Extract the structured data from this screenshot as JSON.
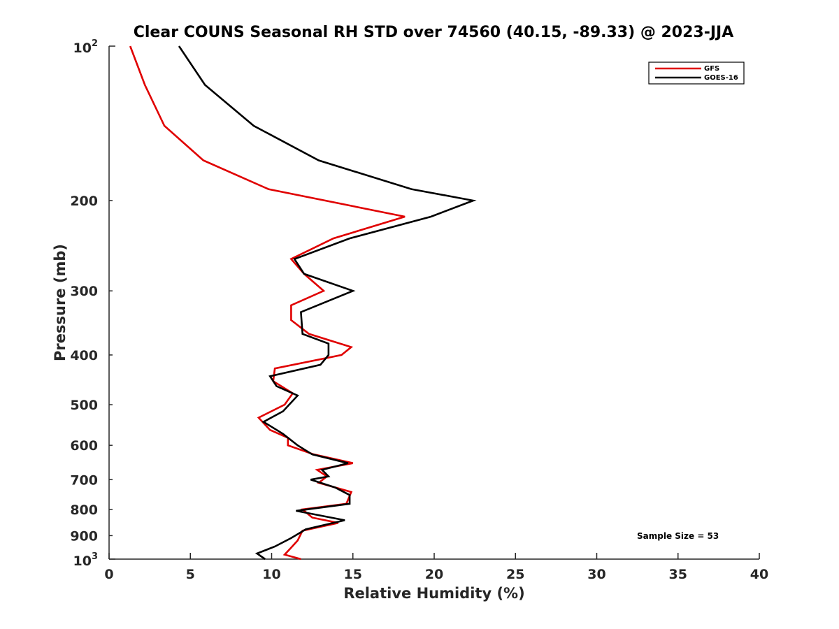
{
  "chart_data": {
    "type": "line",
    "title": "Clear COUNS Seasonal RH STD over 74560 (40.15, -89.33) @ 2023-JJA",
    "xlabel": "Relative Humidity (%)",
    "ylabel": "Pressure (mb)",
    "xlim": [
      0,
      40
    ],
    "ylim": [
      100,
      1000
    ],
    "yscale": "log",
    "y_reversed": true,
    "x_ticks": [
      0,
      5,
      10,
      15,
      20,
      25,
      30,
      35,
      40
    ],
    "x_tick_labels": [
      "0",
      "5",
      "10",
      "15",
      "20",
      "25",
      "30",
      "35",
      "40"
    ],
    "y_ticks": [
      200,
      300,
      400,
      500,
      600,
      700,
      800,
      900
    ],
    "y_tick_labels": [
      "200",
      "300",
      "400",
      "500",
      "600",
      "700",
      "800",
      "900"
    ],
    "y_top_label": {
      "base": "10",
      "exp": "2"
    },
    "y_bottom_label": {
      "base": "10",
      "exp": "3"
    },
    "grid": false,
    "legend_position": "top-right",
    "annotation": "Sample Size = 53",
    "series": [
      {
        "name": "GFS",
        "color": "#e00000",
        "x": [
          1.3,
          2.2,
          3.4,
          5.8,
          9.8,
          18.2,
          13.8,
          11.2,
          12.0,
          13.2,
          11.2,
          11.2,
          12.3,
          14.9,
          14.3,
          10.2,
          10.1,
          11.3,
          10.8,
          9.2,
          9.9,
          11.0,
          11.0,
          12.6,
          15.0,
          12.8,
          13.4,
          12.9,
          14.9,
          14.6,
          11.9,
          12.5,
          14.1,
          11.9,
          11.6,
          11.2,
          10.8,
          11.8
        ],
        "y": [
          100,
          119,
          143,
          167,
          190,
          215,
          237,
          260,
          278,
          300,
          320,
          342,
          364,
          386,
          400,
          425,
          450,
          475,
          500,
          530,
          560,
          580,
          600,
          625,
          650,
          670,
          690,
          710,
          740,
          780,
          800,
          830,
          850,
          880,
          920,
          950,
          980,
          1000
        ]
      },
      {
        "name": "GOES-16",
        "color": "#000000",
        "x": [
          4.3,
          5.9,
          8.9,
          12.9,
          18.6,
          22.4,
          19.8,
          14.8,
          11.4,
          12.0,
          15.0,
          11.8,
          11.9,
          13.5,
          13.5,
          13.0,
          9.9,
          10.3,
          11.6,
          10.7,
          9.5,
          10.7,
          11.6,
          12.5,
          14.7,
          13.1,
          13.5,
          12.4,
          13.9,
          14.8,
          14.8,
          11.5,
          14.5,
          12.1,
          11.2,
          10.2,
          9.1,
          9.6
        ],
        "y": [
          100,
          119,
          143,
          167,
          190,
          200,
          215,
          237,
          260,
          278,
          300,
          330,
          364,
          380,
          400,
          418,
          440,
          460,
          480,
          515,
          540,
          570,
          600,
          625,
          650,
          670,
          690,
          700,
          725,
          750,
          780,
          805,
          840,
          875,
          910,
          945,
          975,
          1000
        ]
      }
    ]
  }
}
